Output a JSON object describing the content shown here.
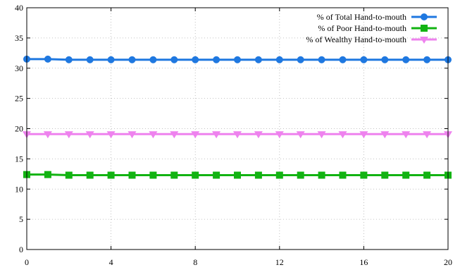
{
  "chart_data": {
    "type": "line",
    "title": "",
    "xlabel": "",
    "ylabel": "",
    "xlim": [
      0,
      20
    ],
    "ylim": [
      0,
      40
    ],
    "x_ticks": [
      0,
      4,
      8,
      12,
      16,
      20
    ],
    "y_ticks": [
      0,
      5,
      10,
      15,
      20,
      25,
      30,
      35,
      40
    ],
    "grid": true,
    "legend_position": "top-right",
    "x": [
      0,
      1,
      2,
      3,
      4,
      5,
      6,
      7,
      8,
      9,
      10,
      11,
      12,
      13,
      14,
      15,
      16,
      17,
      18,
      19,
      20
    ],
    "series": [
      {
        "name": "% of Total Hand-to-mouth",
        "color": "#1f78e0",
        "marker": "circle",
        "values": [
          31.5,
          31.5,
          31.4,
          31.4,
          31.4,
          31.4,
          31.4,
          31.4,
          31.4,
          31.4,
          31.4,
          31.4,
          31.4,
          31.4,
          31.4,
          31.4,
          31.4,
          31.4,
          31.4,
          31.4,
          31.4
        ]
      },
      {
        "name": "% of Poor Hand-to-mouth",
        "color": "#12b312",
        "marker": "square",
        "values": [
          12.4,
          12.4,
          12.3,
          12.3,
          12.3,
          12.3,
          12.3,
          12.3,
          12.3,
          12.3,
          12.3,
          12.3,
          12.3,
          12.3,
          12.3,
          12.3,
          12.3,
          12.3,
          12.3,
          12.3,
          12.3
        ]
      },
      {
        "name": "% of Wealthy Hand-to-mouth",
        "color": "#ee82ee",
        "marker": "triangle-down",
        "values": [
          19.1,
          19.1,
          19.1,
          19.1,
          19.1,
          19.1,
          19.1,
          19.1,
          19.1,
          19.1,
          19.1,
          19.1,
          19.1,
          19.1,
          19.1,
          19.1,
          19.1,
          19.1,
          19.1,
          19.1,
          19.1
        ]
      }
    ]
  }
}
